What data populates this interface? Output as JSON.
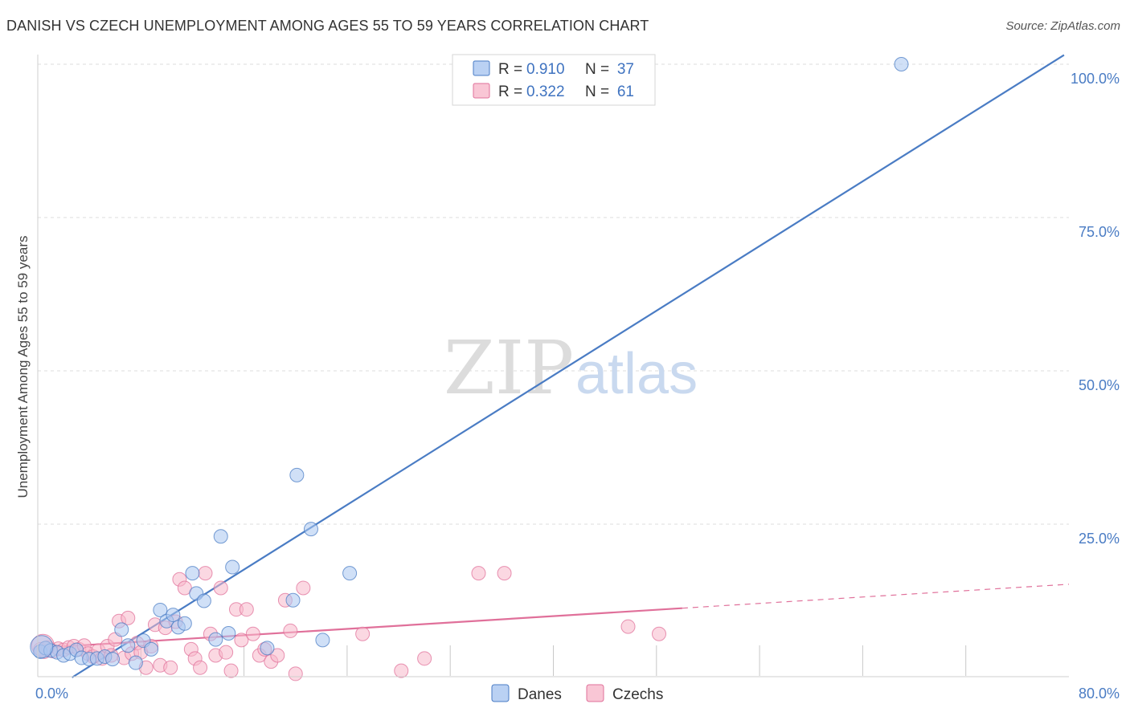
{
  "chart_data": {
    "type": "scatter",
    "title": "DANISH VS CZECH UNEMPLOYMENT AMONG AGES 55 TO 59 YEARS CORRELATION CHART",
    "source": "Source: ZipAtlas.com",
    "ylabel": "Unemployment Among Ages 55 to 59 years",
    "xlim": [
      0,
      80
    ],
    "ylim": [
      0,
      100
    ],
    "x_tick_labels": [
      "0.0%",
      "80.0%"
    ],
    "y_ticks": [
      25,
      50,
      75,
      100
    ],
    "y_tick_labels": [
      "25.0%",
      "50.0%",
      "75.0%",
      "100.0%"
    ],
    "grid": true,
    "legend_placement": "top-center",
    "watermark": [
      "ZIP",
      "atlas"
    ],
    "legend": [
      {
        "r_label": "R =",
        "r_value": "0.910",
        "n_label": "N =",
        "n_value": "37"
      },
      {
        "r_label": "R =",
        "r_value": "0.322",
        "n_label": "N =",
        "n_value": "61"
      }
    ],
    "series": [
      {
        "name": "Danes",
        "color": "#4a7cc4",
        "fill": "#a9c6f0",
        "trend": {
          "x": [
            0,
            80
          ],
          "y": [
            -3.5,
            102.0
          ],
          "dashed_from": null
        },
        "points": [
          [
            0.2,
            4.2
          ],
          [
            0.6,
            4.8
          ],
          [
            1.0,
            4.4
          ],
          [
            1.5,
            4.1
          ],
          [
            2.0,
            3.6
          ],
          [
            2.5,
            3.9
          ],
          [
            3.0,
            4.5
          ],
          [
            3.4,
            3.2
          ],
          [
            4.0,
            3.0
          ],
          [
            4.6,
            3.1
          ],
          [
            5.2,
            3.4
          ],
          [
            5.8,
            3.0
          ],
          [
            6.5,
            7.8
          ],
          [
            7.0,
            5.2
          ],
          [
            7.6,
            2.4
          ],
          [
            8.2,
            6.0
          ],
          [
            8.8,
            4.6
          ],
          [
            9.5,
            11.0
          ],
          [
            10.0,
            9.2
          ],
          [
            10.5,
            10.2
          ],
          [
            10.9,
            8.2
          ],
          [
            11.4,
            8.8
          ],
          [
            12.0,
            17.0
          ],
          [
            12.3,
            13.7
          ],
          [
            12.9,
            12.5
          ],
          [
            13.8,
            6.2
          ],
          [
            14.2,
            23.0
          ],
          [
            14.8,
            7.2
          ],
          [
            15.1,
            18.0
          ],
          [
            17.8,
            4.8
          ],
          [
            19.8,
            12.6
          ],
          [
            20.1,
            33.0
          ],
          [
            21.2,
            24.2
          ],
          [
            22.1,
            6.1
          ],
          [
            24.2,
            17.0
          ],
          [
            67.0,
            100.0
          ],
          [
            0.3,
            5.0
          ]
        ]
      },
      {
        "name": "Czechs",
        "color": "#e0709a",
        "fill": "#f7b8cb",
        "trend": {
          "x": [
            0,
            80
          ],
          "y": [
            4.8,
            15.2
          ],
          "dashed_from": 50.0
        },
        "points": [
          [
            0.2,
            4.6
          ],
          [
            0.5,
            4.2
          ],
          [
            0.8,
            4.9
          ],
          [
            1.2,
            4.3
          ],
          [
            1.6,
            4.7
          ],
          [
            2.0,
            4.5
          ],
          [
            2.4,
            4.9
          ],
          [
            2.8,
            5.1
          ],
          [
            3.2,
            4.6
          ],
          [
            3.6,
            5.2
          ],
          [
            3.9,
            3.9
          ],
          [
            4.3,
            3.4
          ],
          [
            4.7,
            4.4
          ],
          [
            5.0,
            3.1
          ],
          [
            5.4,
            5.1
          ],
          [
            5.7,
            3.6
          ],
          [
            6.0,
            6.2
          ],
          [
            6.3,
            9.2
          ],
          [
            6.7,
            3.2
          ],
          [
            7.0,
            9.7
          ],
          [
            7.3,
            3.9
          ],
          [
            7.7,
            5.6
          ],
          [
            8.0,
            4.1
          ],
          [
            8.4,
            1.6
          ],
          [
            8.8,
            5.1
          ],
          [
            9.1,
            8.6
          ],
          [
            9.5,
            2.0
          ],
          [
            9.9,
            8.1
          ],
          [
            10.3,
            1.6
          ],
          [
            10.7,
            9.1
          ],
          [
            11.0,
            16.0
          ],
          [
            11.4,
            14.6
          ],
          [
            11.9,
            4.6
          ],
          [
            12.2,
            3.1
          ],
          [
            12.6,
            1.6
          ],
          [
            13.0,
            17.0
          ],
          [
            13.4,
            7.1
          ],
          [
            13.8,
            3.6
          ],
          [
            14.2,
            14.6
          ],
          [
            14.6,
            4.1
          ],
          [
            15.0,
            1.1
          ],
          [
            15.4,
            11.1
          ],
          [
            15.8,
            6.1
          ],
          [
            16.2,
            11.1
          ],
          [
            16.7,
            7.1
          ],
          [
            17.2,
            3.6
          ],
          [
            17.6,
            4.6
          ],
          [
            18.1,
            2.6
          ],
          [
            18.6,
            3.6
          ],
          [
            19.2,
            12.6
          ],
          [
            19.6,
            7.6
          ],
          [
            20.0,
            0.6
          ],
          [
            20.6,
            14.6
          ],
          [
            25.2,
            7.1
          ],
          [
            28.2,
            1.1
          ],
          [
            30.0,
            3.1
          ],
          [
            34.2,
            17.0
          ],
          [
            36.2,
            17.0
          ],
          [
            45.8,
            8.3
          ],
          [
            48.2,
            7.1
          ],
          [
            0.4,
            5.2
          ]
        ]
      }
    ]
  }
}
